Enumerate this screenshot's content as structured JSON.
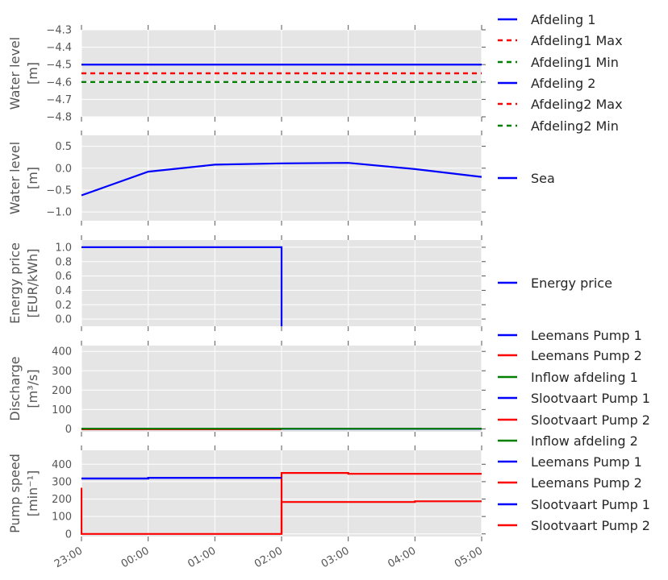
{
  "colors": {
    "background": "#e5e5e5",
    "grid": "#ffffff",
    "blue": "#0000ff",
    "red": "#ff0000",
    "green": "#008000",
    "text": "#555555"
  },
  "x_tick_labels": [
    "23:00",
    "00:00",
    "01:00",
    "02:00",
    "03:00",
    "04:00",
    "05:00"
  ],
  "chart_data": [
    {
      "type": "line",
      "ylabel": [
        "Water level",
        "[m]"
      ],
      "ylim": [
        -4.8,
        -4.3
      ],
      "yticks": [
        -4.3,
        -4.4,
        -4.5,
        -4.6,
        -4.7,
        -4.8
      ],
      "ytick_labels": [
        "−4.3",
        "−4.4",
        "−4.5",
        "−4.6",
        "−4.7",
        "−4.8"
      ],
      "grid": true,
      "legend": "right",
      "series": [
        {
          "name": "Afdeling 1",
          "color": "#0000ff",
          "dash": false,
          "x": [
            0,
            6
          ],
          "y": [
            -4.5,
            -4.5
          ]
        },
        {
          "name": "Afdeling1 Max",
          "color": "#ff0000",
          "dash": true,
          "x": [
            0,
            6
          ],
          "y": [
            -4.55,
            -4.55
          ]
        },
        {
          "name": "Afdeling1 Min",
          "color": "#008000",
          "dash": true,
          "x": [
            0,
            6
          ],
          "y": [
            -4.6,
            -4.6
          ]
        },
        {
          "name": "Afdeling 2",
          "color": "#0000ff",
          "dash": false,
          "x": [
            0,
            6
          ],
          "y": [
            -4.5,
            -4.5
          ]
        },
        {
          "name": "Afdeling2 Max",
          "color": "#ff0000",
          "dash": true,
          "x": [
            0,
            6
          ],
          "y": [
            -4.55,
            -4.55
          ]
        },
        {
          "name": "Afdeling2 Min",
          "color": "#008000",
          "dash": true,
          "x": [
            0,
            6
          ],
          "y": [
            -4.6,
            -4.6
          ]
        }
      ]
    },
    {
      "type": "line",
      "ylabel": [
        "Water level",
        "[m]"
      ],
      "ylim": [
        -1.2,
        0.75
      ],
      "yticks": [
        0.5,
        0.0,
        -0.5,
        -1.0
      ],
      "ytick_labels": [
        "0.5",
        "0.0",
        "−0.5",
        "−1.0"
      ],
      "grid": true,
      "legend": "right",
      "series": [
        {
          "name": "Sea",
          "color": "#0000ff",
          "dash": false,
          "x": [
            0,
            1,
            2,
            3,
            4,
            5,
            6
          ],
          "y": [
            -0.62,
            -0.08,
            0.08,
            0.11,
            0.12,
            -0.02,
            -0.2
          ]
        }
      ]
    },
    {
      "type": "line",
      "ylabel": [
        "Energy price",
        "[EUR/kWh]"
      ],
      "ylim": [
        -0.1,
        1.1
      ],
      "yticks": [
        1.0,
        0.8,
        0.6,
        0.4,
        0.2,
        0.0
      ],
      "ytick_labels": [
        "1.0",
        "0.8",
        "0.6",
        "0.4",
        "0.2",
        "0.0"
      ],
      "grid": true,
      "legend": "right",
      "series": [
        {
          "name": "Energy price",
          "color": "#0000ff",
          "dash": false,
          "x": [
            0,
            3,
            3
          ],
          "y": [
            1.0,
            1.0,
            -0.1
          ]
        }
      ]
    },
    {
      "type": "line",
      "ylabel": [
        "Discharge",
        "[m³/s]"
      ],
      "ylim": [
        -15,
        430
      ],
      "yticks": [
        400,
        300,
        200,
        100,
        0
      ],
      "ytick_labels": [
        "400",
        "300",
        "200",
        "100",
        "0"
      ],
      "grid": true,
      "legend": "right",
      "series": [
        {
          "name": "Leemans Pump 1",
          "color": "#0000ff",
          "dash": false,
          "x": [
            0,
            6
          ],
          "y": [
            0,
            0
          ]
        },
        {
          "name": "Leemans Pump 2",
          "color": "#ff0000",
          "dash": false,
          "x": [
            0,
            3
          ],
          "y": [
            -2,
            -2
          ]
        },
        {
          "name": "Inflow afdeling 1",
          "color": "#008000",
          "dash": false,
          "x": [
            0,
            6
          ],
          "y": [
            1,
            1
          ]
        },
        {
          "name": "Slootvaart Pump 1",
          "color": "#0000ff",
          "dash": false,
          "x": [
            0,
            6
          ],
          "y": [
            0,
            0
          ]
        },
        {
          "name": "Slootvaart Pump 2",
          "color": "#ff0000",
          "dash": false,
          "x": [
            0,
            3
          ],
          "y": [
            -2,
            -2
          ]
        },
        {
          "name": "Inflow afdeling 2",
          "color": "#008000",
          "dash": false,
          "x": [
            0,
            6
          ],
          "y": [
            1,
            1
          ]
        }
      ]
    },
    {
      "type": "line",
      "ylabel": [
        "Pump speed",
        "[min⁻¹]"
      ],
      "ylim": [
        -15,
        480
      ],
      "yticks": [
        400,
        300,
        200,
        100,
        0
      ],
      "ytick_labels": [
        "400",
        "300",
        "200",
        "100",
        "0"
      ],
      "grid": true,
      "legend": "right",
      "series": [
        {
          "name": "Leemans Pump 1",
          "color": "#0000ff",
          "dash": false,
          "x": [
            0,
            1,
            1,
            3
          ],
          "y": [
            318,
            318,
            322,
            322
          ]
        },
        {
          "name": "Leemans Pump 2",
          "color": "#ff0000",
          "dash": false,
          "x": [
            0,
            0,
            3,
            3,
            4,
            4,
            6
          ],
          "y": [
            265,
            0,
            0,
            350,
            350,
            345,
            345
          ]
        },
        {
          "name": "Slootvaart Pump 1",
          "color": "#0000ff",
          "dash": false,
          "x": [
            0,
            1,
            1,
            3
          ],
          "y": [
            318,
            318,
            322,
            322
          ]
        },
        {
          "name": "Slootvaart Pump 2",
          "color": "#ff0000",
          "dash": false,
          "x": [
            3,
            3,
            5,
            5,
            6
          ],
          "y": [
            0,
            183,
            183,
            187,
            187
          ]
        }
      ]
    }
  ]
}
